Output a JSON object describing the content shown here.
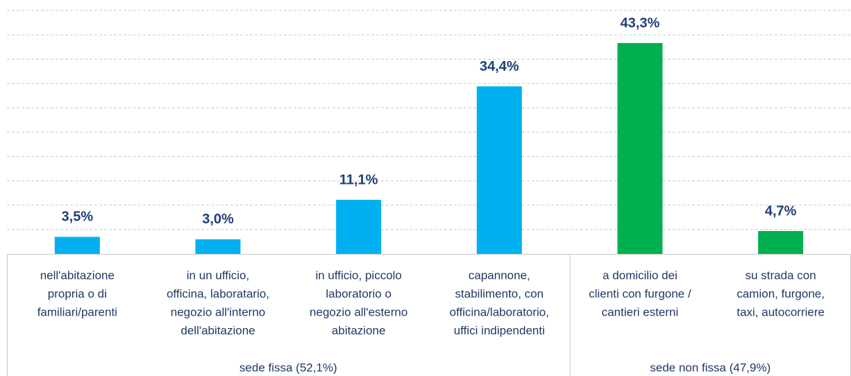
{
  "chart_data": {
    "type": "bar",
    "groups": [
      {
        "label": "sede fissa (52,1%)",
        "color": "#00b0f0",
        "categories": [
          [
            "nell'abitazione",
            "propria o di",
            "familiari/parenti"
          ],
          [
            "in un ufficio,",
            "officina, laboratario,",
            "negozio all'interno",
            "dell'abitazione"
          ],
          [
            "in ufficio, piccolo",
            "laboratorio o",
            "negozio all'esterno",
            "abitazione"
          ],
          [
            "capannone,",
            "stabilimento, con",
            "officina/laboratorio,",
            "uffici indipendenti"
          ]
        ],
        "values": [
          3.5,
          3.0,
          11.1,
          34.4
        ],
        "value_labels": [
          "3,5%",
          "3,0%",
          "11,1%",
          "34,4%"
        ]
      },
      {
        "label": "sede non fissa (47,9%)",
        "color": "#00b050",
        "categories": [
          [
            "a domicilio dei",
            "clienti con furgone /",
            "cantieri esterni"
          ],
          [
            "su strada con",
            "camion, furgone,",
            "taxi, autocorriere"
          ]
        ],
        "values": [
          43.3,
          4.7
        ],
        "value_labels": [
          "43,3%",
          "4,7%"
        ]
      }
    ],
    "ylim": [
      0,
      50
    ],
    "yticks": [
      0,
      5,
      10,
      15,
      20,
      25,
      30,
      35,
      40,
      45,
      50
    ],
    "grid": true
  }
}
